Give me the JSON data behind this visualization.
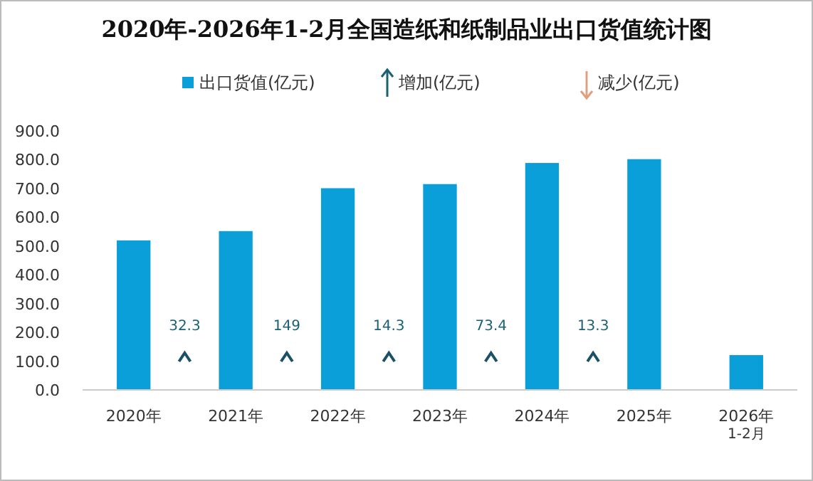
{
  "chart_data": {
    "type": "bar",
    "title": "2020年-2026年1-2月全国造纸和纸制品业出口货值统计图",
    "categories": [
      "2020年",
      "2021年",
      "2022年",
      "2023年",
      "2024年",
      "2025年",
      "2026年\n1-2月"
    ],
    "series": [
      {
        "name": "出口货值(亿元)",
        "color": "#0a9fd8",
        "values": [
          519.6,
          551.9,
          700.9,
          715.2,
          788.6,
          801.9,
          121
        ]
      }
    ],
    "ylim": [
      0,
      900
    ],
    "yticks": [
      {
        "value": 0,
        "label": "0.0"
      },
      {
        "value": 100,
        "label": "100.0"
      },
      {
        "value": 200,
        "label": "200.0"
      },
      {
        "value": 300,
        "label": "300.0"
      },
      {
        "value": 400,
        "label": "400.0"
      },
      {
        "value": 500,
        "label": "500.0"
      },
      {
        "value": 600,
        "label": "600.0"
      },
      {
        "value": 700,
        "label": "700.0"
      },
      {
        "value": 800,
        "label": "800.0"
      },
      {
        "value": 900,
        "label": "900.0"
      }
    ],
    "annotations": [
      "增加(亿元)",
      "减少(亿元)",
      "32.3",
      "149",
      "14.3",
      "73.4",
      "13.3"
    ],
    "legend": "top",
    "grid": false
  }
}
